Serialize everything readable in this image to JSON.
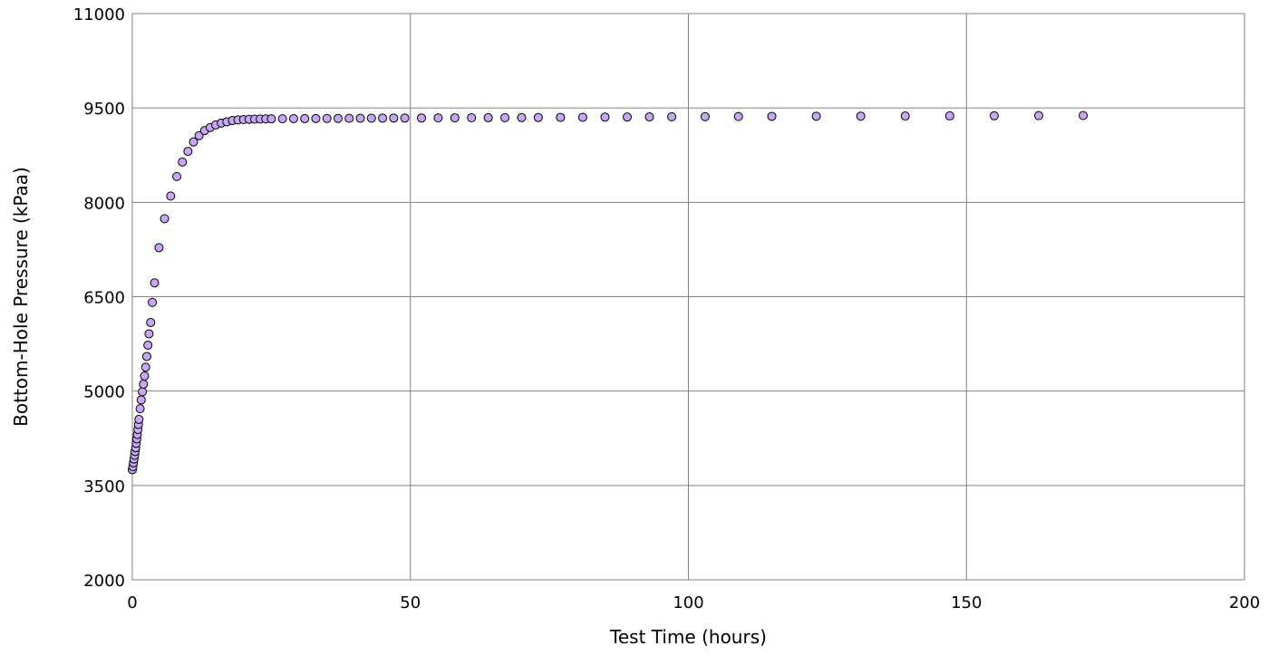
{
  "chart_data": {
    "type": "scatter",
    "xlabel": "Test Time (hours)",
    "ylabel": "Bottom-Hole Pressure (kPaa)",
    "xlim": [
      0,
      200
    ],
    "ylim": [
      2000,
      11000
    ],
    "x_ticks": [
      0,
      50,
      100,
      150,
      200
    ],
    "y_ticks": [
      2000,
      3500,
      5000,
      6500,
      8000,
      9500,
      11000
    ],
    "grid": true,
    "legend": "none",
    "marker_color": "#c9a6f5",
    "series": [
      {
        "points": [
          [
            0.0,
            3750
          ],
          [
            0.1,
            3800
          ],
          [
            0.2,
            3860
          ],
          [
            0.3,
            3920
          ],
          [
            0.4,
            3980
          ],
          [
            0.5,
            4040
          ],
          [
            0.6,
            4100
          ],
          [
            0.7,
            4170
          ],
          [
            0.8,
            4240
          ],
          [
            0.9,
            4310
          ],
          [
            1.0,
            4390
          ],
          [
            1.1,
            4470
          ],
          [
            1.2,
            4550
          ],
          [
            1.4,
            4720
          ],
          [
            1.6,
            4860
          ],
          [
            1.8,
            4990
          ],
          [
            2.0,
            5110
          ],
          [
            2.2,
            5240
          ],
          [
            2.4,
            5380
          ],
          [
            2.6,
            5550
          ],
          [
            2.8,
            5730
          ],
          [
            3.0,
            5910
          ],
          [
            3.3,
            6090
          ],
          [
            3.6,
            6410
          ],
          [
            4.0,
            6720
          ],
          [
            4.8,
            7280
          ],
          [
            5.8,
            7740
          ],
          [
            6.9,
            8100
          ],
          [
            8.0,
            8410
          ],
          [
            9.0,
            8640
          ],
          [
            10.0,
            8810
          ],
          [
            11.0,
            8960
          ],
          [
            12.0,
            9060
          ],
          [
            13.0,
            9140
          ],
          [
            14.0,
            9190
          ],
          [
            15.0,
            9230
          ],
          [
            16.0,
            9260
          ],
          [
            17.0,
            9280
          ],
          [
            18.0,
            9300
          ],
          [
            19.0,
            9310
          ],
          [
            20.0,
            9315
          ],
          [
            21.0,
            9320
          ],
          [
            22.0,
            9322
          ],
          [
            23.0,
            9324
          ],
          [
            24.0,
            9326
          ],
          [
            25.0,
            9327
          ],
          [
            27.0,
            9328
          ],
          [
            29.0,
            9330
          ],
          [
            31.0,
            9331
          ],
          [
            33.0,
            9332
          ],
          [
            35.0,
            9333
          ],
          [
            37.0,
            9334
          ],
          [
            39.0,
            9335
          ],
          [
            41.0,
            9336
          ],
          [
            43.0,
            9337
          ],
          [
            45.0,
            9338
          ],
          [
            47.0,
            9339
          ],
          [
            49.0,
            9340
          ],
          [
            52.0,
            9341
          ],
          [
            55.0,
            9342
          ],
          [
            58.0,
            9343
          ],
          [
            61.0,
            9344
          ],
          [
            64.0,
            9345
          ],
          [
            67.0,
            9346
          ],
          [
            70.0,
            9347
          ],
          [
            73.0,
            9348
          ],
          [
            77.0,
            9350
          ],
          [
            81.0,
            9352
          ],
          [
            85.0,
            9354
          ],
          [
            89.0,
            9356
          ],
          [
            93.0,
            9358
          ],
          [
            97.0,
            9360
          ],
          [
            103.0,
            9362
          ],
          [
            109.0,
            9364
          ],
          [
            115.0,
            9366
          ],
          [
            123.0,
            9368
          ],
          [
            131.0,
            9370
          ],
          [
            139.0,
            9372
          ],
          [
            147.0,
            9374
          ],
          [
            155.0,
            9376
          ],
          [
            163.0,
            9378
          ],
          [
            171.0,
            9380
          ]
        ]
      }
    ]
  }
}
